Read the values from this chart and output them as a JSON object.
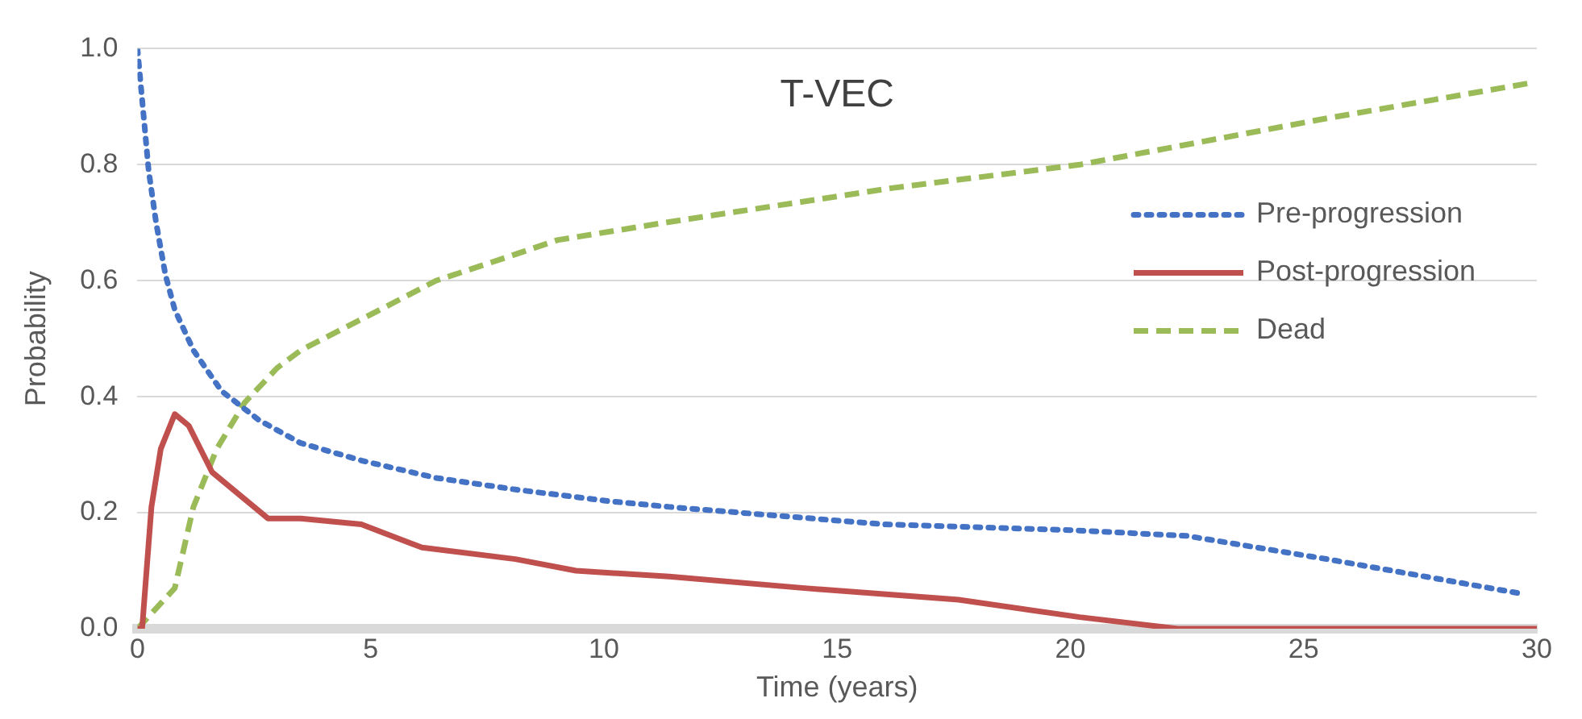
{
  "chart_data": {
    "type": "line",
    "title": "T-VEC",
    "xlabel": "Time (years)",
    "ylabel": "Probability",
    "xlim": [
      0,
      30
    ],
    "xticks": [
      0,
      5,
      10,
      15,
      20,
      25,
      30
    ],
    "ylim": [
      0,
      1
    ],
    "yticks": [
      {
        "value": 0,
        "label": "0.0"
      },
      {
        "value": 0.2,
        "label": "0.2"
      },
      {
        "value": 0.4,
        "label": "0.4"
      },
      {
        "value": 0.6,
        "label": "0.6"
      },
      {
        "value": 0.8,
        "label": "0.8"
      },
      {
        "value": 1,
        "label": "1.0"
      }
    ],
    "grid": "y",
    "legend": "right",
    "series": [
      {
        "name": "Pre-progression",
        "color": "#4472c4",
        "line_style": "dotted",
        "x": [
          0,
          0.24,
          0.4,
          0.6,
          0.8,
          1.2,
          1.8,
          2.6,
          3.5,
          4.8,
          6.4,
          8.1,
          10.1,
          11.4,
          16,
          20,
          22.5,
          25.5,
          29.7
        ],
        "values": [
          1.0,
          0.79,
          0.7,
          0.61,
          0.55,
          0.48,
          0.41,
          0.36,
          0.32,
          0.29,
          0.26,
          0.24,
          0.22,
          0.21,
          0.18,
          0.17,
          0.16,
          0.12,
          0.06
        ]
      },
      {
        "name": "Post-progression",
        "color": "#c0504d",
        "line_style": "solid",
        "x": [
          0,
          0.1,
          0.3,
          0.5,
          0.8,
          1.1,
          1.6,
          2.2,
          2.8,
          3.5,
          4.8,
          6.1,
          8.1,
          9.4,
          11.4,
          14.3,
          17.6,
          20.2,
          22.3,
          30
        ],
        "values": [
          0,
          0,
          0.21,
          0.31,
          0.37,
          0.35,
          0.27,
          0.23,
          0.19,
          0.19,
          0.18,
          0.14,
          0.12,
          0.1,
          0.09,
          0.07,
          0.05,
          0.02,
          0,
          0
        ]
      },
      {
        "name": "Dead",
        "color": "#9bbb59",
        "line_style": "dashed",
        "x": [
          0,
          0.8,
          1.2,
          1.7,
          2.3,
          3,
          3.5,
          5.2,
          6.4,
          7.9,
          9,
          11.3,
          16.2,
          20.2,
          25.5,
          29.8
        ],
        "values": [
          0,
          0.07,
          0.21,
          0.31,
          0.39,
          0.45,
          0.48,
          0.55,
          0.6,
          0.64,
          0.67,
          0.7,
          0.76,
          0.8,
          0.88,
          0.94
        ]
      }
    ]
  }
}
